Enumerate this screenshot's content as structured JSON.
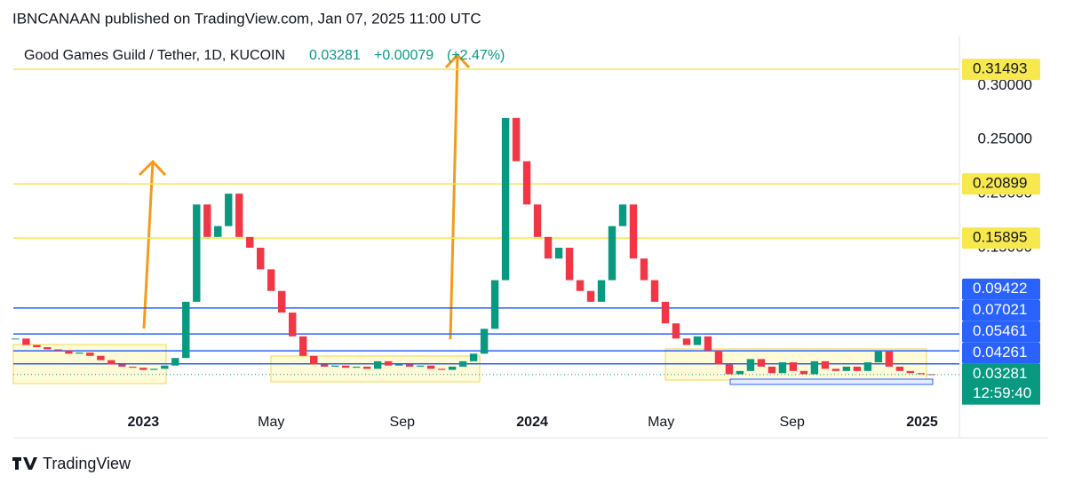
{
  "header": {
    "text": "IBNCANAAN published on TradingView.com, Jan 07, 2025 11:00 UTC"
  },
  "chart_data": {
    "type": "candlestick",
    "symbol": "Good Games Guild / Tether, 1D, KUCOIN",
    "last": 0.03281,
    "change": "+0.00079",
    "change_pct": "(+2.47%)",
    "countdown": "12:59:40",
    "up_color": "#089981",
    "down_color": "#f23645",
    "x": [
      -120,
      -110,
      -100,
      -90,
      -80,
      -70,
      -60,
      -50,
      -40,
      -30,
      -20,
      -10,
      0,
      10,
      20,
      30,
      40,
      50,
      60,
      70,
      80,
      90,
      100,
      110,
      120,
      130,
      140,
      150,
      160,
      170,
      180,
      190,
      200,
      210,
      220,
      230,
      240,
      250,
      260,
      270,
      280,
      290,
      300,
      310,
      320,
      330,
      340,
      350,
      360,
      370,
      380,
      390,
      400,
      410,
      420,
      430,
      440,
      450,
      460,
      470,
      480,
      490,
      500,
      510,
      520,
      530,
      540,
      550,
      560,
      570,
      580,
      590,
      600,
      610,
      620,
      630,
      640,
      650,
      660,
      670,
      680,
      690,
      700,
      710,
      720,
      730,
      740
    ],
    "values": [
      0.066,
      0.06,
      0.058,
      0.056,
      0.055,
      0.052,
      0.053,
      0.05,
      0.046,
      0.042,
      0.04,
      0.039,
      0.037,
      0.038,
      0.041,
      0.048,
      0.1,
      0.19,
      0.16,
      0.17,
      0.2,
      0.16,
      0.15,
      0.13,
      0.11,
      0.09,
      0.068,
      0.05,
      0.042,
      0.04,
      0.041,
      0.039,
      0.04,
      0.038,
      0.045,
      0.041,
      0.042,
      0.04,
      0.041,
      0.038,
      0.037,
      0.04,
      0.045,
      0.052,
      0.075,
      0.12,
      0.27,
      0.23,
      0.19,
      0.16,
      0.14,
      0.15,
      0.12,
      0.11,
      0.1,
      0.12,
      0.17,
      0.19,
      0.14,
      0.12,
      0.1,
      0.08,
      0.066,
      0.06,
      0.068,
      0.055,
      0.042,
      0.033,
      0.036,
      0.047,
      0.04,
      0.034,
      0.044,
      0.036,
      0.033,
      0.045,
      0.038,
      0.036,
      0.04,
      0.036,
      0.044,
      0.054,
      0.04,
      0.036,
      0.034,
      0.033,
      0.03281
    ],
    "xlim": [
      -122,
      766
    ],
    "xticks": [
      {
        "value": 0,
        "label": "2023"
      },
      {
        "value": 120,
        "label": "May"
      },
      {
        "value": 243,
        "label": "Sep"
      },
      {
        "value": 365,
        "label": "2024"
      },
      {
        "value": 486,
        "label": "May"
      },
      {
        "value": 609,
        "label": "Sep"
      },
      {
        "value": 731,
        "label": "2025"
      }
    ],
    "ylim": [
      0.003,
      0.343
    ],
    "yticks": [
      {
        "value": 0.15,
        "label": "0.15000"
      },
      {
        "value": 0.2,
        "label": "0.20000"
      },
      {
        "value": 0.25,
        "label": "0.25000"
      },
      {
        "value": 0.3,
        "label": "0.30000"
      }
    ],
    "levels": [
      {
        "value": 0.31493,
        "color": "#f7e84e"
      },
      {
        "value": 0.20899,
        "color": "#f7e84e"
      },
      {
        "value": 0.15895,
        "color": "#f7e84e"
      },
      {
        "value": 0.09422,
        "color": "#2962ff"
      },
      {
        "value": 0.07021,
        "color": "#2962ff"
      },
      {
        "value": 0.05461,
        "color": "#2962ff"
      },
      {
        "value": 0.04261,
        "color": "#2962ff"
      }
    ]
  },
  "footer": {
    "brand": "TradingView"
  }
}
